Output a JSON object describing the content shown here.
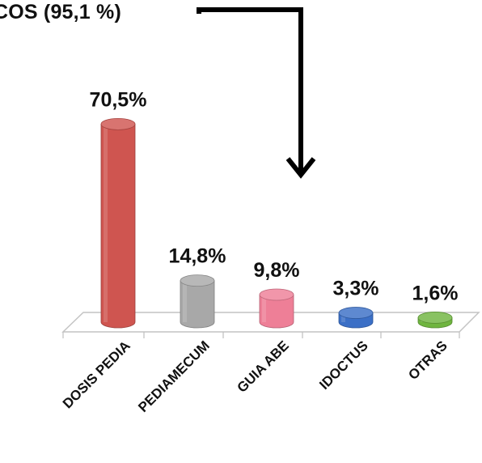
{
  "chart_data": {
    "type": "bar",
    "title": "COS (95,1 %)",
    "categories": [
      "DOSIS PEDIA",
      "PEDIAMECUM",
      "GUIA ABE",
      "IDOCTUS",
      "OTRAS"
    ],
    "values": [
      70.5,
      14.8,
      9.8,
      3.3,
      1.6
    ],
    "value_labels": [
      "70,5%",
      "14,8%",
      "9,8%",
      "3,3%",
      "1,6%"
    ],
    "unit": "%",
    "bar_style": "3d-cylinder",
    "colors": [
      "#cf5550",
      "#a8a8a8",
      "#ee7f97",
      "#3b6fc6",
      "#6fb53f"
    ],
    "grid": false,
    "legend": "none",
    "ylim": [
      0,
      75
    ],
    "annotation": "arrow pointing down from title"
  }
}
